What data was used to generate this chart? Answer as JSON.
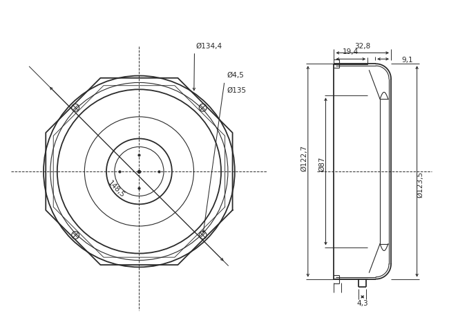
{
  "bg_color": "#ffffff",
  "line_color": "#2a2a2a",
  "dim_color": "#2a2a2a",
  "lw_main": 1.3,
  "lw_thin": 0.8,
  "lw_dim": 0.7,
  "font_size": 7.5,
  "dims": {
    "d134": "Ø134,4",
    "d45": "Ø4,5",
    "d135": "Ø135",
    "d1485": "148,5",
    "d327": "32,8",
    "d91": "9,1",
    "d194": "19,4",
    "d1227": "Ø122,7",
    "d87": "Ø87",
    "d1235": "Ø123,5",
    "d43": "4,3"
  }
}
